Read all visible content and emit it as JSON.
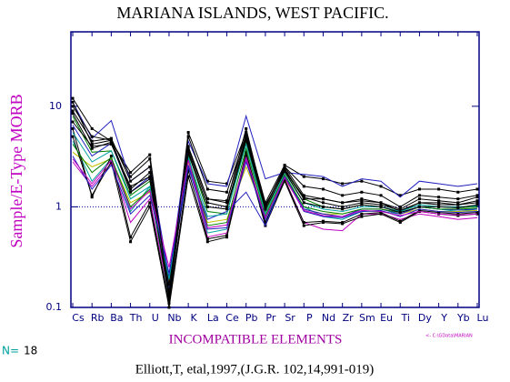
{
  "chart_data": {
    "type": "line",
    "title": "MARIANA ISLANDS, WEST PACIFIC.",
    "y_label": "Sample/E-Type MORB",
    "x_label": "INCOMPATIBLE ELEMENTS",
    "n_label": "N=",
    "n": 18,
    "citation": "Elliott,T, etal,1997,(J.G.R. 102,14,991-019)",
    "annotation": "<- C:\\GData\\MARIAN",
    "log_y": true,
    "reference_line": 1,
    "reference_color": "#0000a0",
    "axis_color": "#000080",
    "ylim": [
      0.1,
      55
    ],
    "yticks": [
      0.1,
      1,
      10
    ],
    "categories": [
      "Cs",
      "Rb",
      "Ba",
      "Th",
      "U",
      "Nb",
      "K",
      "La",
      "Ce",
      "Pb",
      "Pr",
      "Sr",
      "P",
      "Nd",
      "Zr",
      "Sm",
      "Eu",
      "Ti",
      "Dy",
      "Y",
      "Yb",
      "Lu"
    ],
    "series": [
      {
        "color": "#000000",
        "values": [
          12,
          6,
          4.5,
          2.2,
          3.3,
          0.14,
          5.5,
          1.8,
          1.7,
          5.5,
          1.1,
          2.6,
          2.0,
          1.9,
          1.7,
          1.8,
          1.6,
          1.3,
          1.5,
          1.5,
          1.4,
          1.5
        ]
      },
      {
        "color": "#2020c0",
        "values": [
          11,
          4.8,
          7.2,
          1.8,
          2.5,
          0.2,
          4.5,
          1.7,
          1.6,
          8,
          1.9,
          2.2,
          2.1,
          2.0,
          1.6,
          1.9,
          1.8,
          1.25,
          1.8,
          1.7,
          1.6,
          1.7
        ]
      },
      {
        "color": "#000000",
        "values": [
          11,
          4.2,
          4.6,
          1.5,
          2.2,
          0.13,
          3.8,
          1.2,
          1.1,
          6,
          1.0,
          2.5,
          1.3,
          1.2,
          1.1,
          1.2,
          1.1,
          0.95,
          1.2,
          1.15,
          1.1,
          1.25
        ]
      },
      {
        "color": "#008000",
        "values": [
          8,
          3.5,
          3.6,
          1.3,
          1.8,
          0.16,
          3.5,
          0.9,
          0.85,
          4.5,
          0.9,
          2.3,
          1.2,
          1.0,
          0.95,
          1.05,
          1.0,
          0.9,
          1.05,
          1.0,
          0.98,
          1.0
        ]
      },
      {
        "color": "#00a0a0",
        "values": [
          4.5,
          1.8,
          3.0,
          0.9,
          1.6,
          0.12,
          3.3,
          0.55,
          0.6,
          3.3,
          0.7,
          2.0,
          1.0,
          0.8,
          0.75,
          0.9,
          0.9,
          0.85,
          1.0,
          0.95,
          0.9,
          0.95
        ]
      },
      {
        "color": "#c000c0",
        "values": [
          2.8,
          1.6,
          2.7,
          0.7,
          1.2,
          0.13,
          3.0,
          0.5,
          0.55,
          3.0,
          0.68,
          1.9,
          0.7,
          0.6,
          0.58,
          0.85,
          0.85,
          0.75,
          0.85,
          0.8,
          0.75,
          0.78
        ]
      },
      {
        "color": "#c0c000",
        "values": [
          3.5,
          2.5,
          3.0,
          1.1,
          1.4,
          0.18,
          2.8,
          0.7,
          0.75,
          2.5,
          0.85,
          1.9,
          0.95,
          0.85,
          0.85,
          0.95,
          0.95,
          0.85,
          0.95,
          0.9,
          0.9,
          0.92
        ]
      },
      {
        "color": "#000000",
        "values": [
          5,
          1.3,
          2.8,
          0.45,
          1.0,
          0.1,
          2.0,
          0.45,
          0.5,
          3.2,
          0.65,
          1.8,
          0.65,
          0.7,
          0.68,
          0.8,
          0.85,
          0.7,
          0.9,
          0.85,
          0.82,
          0.85
        ]
      },
      {
        "color": "#000000",
        "values": [
          6,
          1.25,
          3.2,
          0.5,
          1.1,
          0.11,
          2.3,
          0.48,
          0.52,
          3.5,
          0.7,
          1.85,
          0.7,
          0.72,
          0.7,
          0.85,
          0.88,
          0.72,
          0.92,
          0.88,
          0.85,
          0.88
        ]
      },
      {
        "color": "#2020c0",
        "values": [
          6.5,
          3.2,
          4.3,
          1.4,
          2.0,
          0.15,
          2.6,
          0.75,
          0.9,
          1.4,
          0.65,
          2.0,
          0.95,
          0.85,
          0.8,
          0.95,
          0.95,
          0.85,
          1.0,
          0.95,
          0.93,
          0.95
        ]
      },
      {
        "color": "#000000",
        "values": [
          7,
          4,
          4.2,
          1.6,
          2.0,
          0.17,
          3.6,
          1.1,
          1.0,
          4.8,
          1.0,
          2.4,
          1.2,
          1.2,
          1.1,
          1.15,
          1.1,
          0.9,
          1.1,
          1.05,
          1.05,
          1.1
        ]
      },
      {
        "color": "#008000",
        "values": [
          4.2,
          2.2,
          3.1,
          1.0,
          1.5,
          0.14,
          3.2,
          0.65,
          0.7,
          3.8,
          0.8,
          2.1,
          1.0,
          0.9,
          0.85,
          0.95,
          0.95,
          0.88,
          1.0,
          0.95,
          0.95,
          0.97
        ]
      },
      {
        "color": "#000000",
        "values": [
          9,
          4.5,
          4.8,
          1.8,
          2.5,
          0.14,
          4.0,
          1.2,
          1.15,
          5.0,
          1.05,
          2.3,
          1.25,
          1.1,
          1.0,
          1.1,
          1.05,
          0.92,
          1.1,
          1.1,
          1.05,
          1.15
        ]
      },
      {
        "color": "#00a0a0",
        "values": [
          5.5,
          2.8,
          3.6,
          1.2,
          1.6,
          0.19,
          3.1,
          0.8,
          0.85,
          4.2,
          0.85,
          2.2,
          1.1,
          0.95,
          0.9,
          1.0,
          1.0,
          0.9,
          1.05,
          1.0,
          1.0,
          1.02
        ]
      },
      {
        "color": "#000000",
        "values": [
          8.5,
          3.8,
          4.4,
          1.4,
          1.9,
          0.12,
          3.4,
          1.0,
          0.95,
          4.6,
          0.95,
          2.25,
          1.1,
          1.0,
          0.95,
          1.05,
          1.0,
          0.88,
          1.0,
          1.0,
          0.98,
          1.05
        ]
      },
      {
        "color": "#2020c0",
        "values": [
          3.2,
          1.5,
          2.6,
          0.85,
          1.3,
          0.22,
          2.5,
          0.6,
          0.62,
          2.8,
          0.75,
          2.0,
          0.9,
          0.8,
          0.78,
          0.9,
          0.92,
          0.8,
          0.95,
          0.9,
          0.88,
          0.9
        ]
      },
      {
        "color": "#c000c0",
        "values": [
          3,
          1.7,
          2.9,
          0.95,
          1.45,
          0.25,
          2.9,
          0.62,
          0.66,
          3.1,
          0.78,
          1.95,
          0.92,
          0.82,
          0.8,
          0.92,
          0.9,
          0.82,
          0.9,
          0.85,
          0.83,
          0.85
        ]
      },
      {
        "color": "#000000",
        "values": [
          10,
          5,
          4.6,
          2.0,
          3.0,
          0.13,
          5.0,
          1.5,
          1.4,
          5.2,
          1.0,
          2.5,
          1.6,
          1.5,
          1.3,
          1.4,
          1.3,
          1.0,
          1.3,
          1.25,
          1.2,
          1.3
        ]
      }
    ]
  }
}
